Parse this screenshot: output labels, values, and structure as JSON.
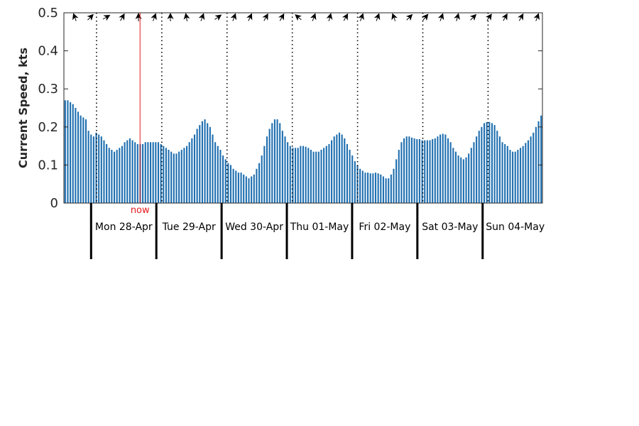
{
  "chart_data": {
    "type": "bar",
    "ylabel": "Current Speed, kts",
    "ylim": [
      0,
      0.5
    ],
    "yticks": [
      "0",
      "0.1",
      "0.2",
      "0.3",
      "0.4",
      "0.5"
    ],
    "bar_color": "#1f6fb0",
    "now_color": "#e41a1c",
    "grid": false,
    "now": {
      "label": "now",
      "time": "2025-04-28T18:00"
    },
    "x_start": "2025-04-27T14:00",
    "x_end": "2025-05-04T22:00",
    "days": [
      {
        "label": "Mon 28-Apr",
        "date": "2025-04-28"
      },
      {
        "label": "Tue 29-Apr",
        "date": "2025-04-29"
      },
      {
        "label": "Wed 30-Apr",
        "date": "2025-04-30"
      },
      {
        "label": "Thu 01-May",
        "date": "2025-05-01"
      },
      {
        "label": "Fri 02-May",
        "date": "2025-05-02"
      },
      {
        "label": "Sat 03-May",
        "date": "2025-05-03"
      },
      {
        "label": "Sun 04-May",
        "date": "2025-05-04"
      }
    ],
    "dotted_line_times": [
      "2025-04-28T02:00",
      "2025-04-29T02:00",
      "2025-04-30T02:00",
      "2025-05-01T02:00",
      "2025-05-02T02:00",
      "2025-05-03T02:00",
      "2025-05-04T02:00"
    ],
    "direction_arrows": {
      "icon": "arrow-icon",
      "headings_deg": [
        340,
        45,
        60,
        30,
        0,
        20,
        0,
        350,
        20,
        55,
        20,
        25,
        30,
        30,
        310,
        20,
        15,
        30,
        20,
        20,
        340,
        45,
        40,
        20,
        15,
        45,
        35,
        30,
        30,
        20
      ]
    },
    "x_step_hours": 1,
    "values": [
      0.27,
      0.27,
      0.265,
      0.26,
      0.25,
      0.24,
      0.23,
      0.225,
      0.22,
      0.19,
      0.18,
      0.175,
      0.185,
      0.18,
      0.175,
      0.165,
      0.155,
      0.145,
      0.14,
      0.135,
      0.14,
      0.145,
      0.15,
      0.16,
      0.165,
      0.17,
      0.165,
      0.16,
      0.155,
      0.155,
      0.155,
      0.16,
      0.16,
      0.16,
      0.16,
      0.16,
      0.16,
      0.155,
      0.15,
      0.145,
      0.14,
      0.135,
      0.13,
      0.13,
      0.135,
      0.14,
      0.145,
      0.15,
      0.16,
      0.17,
      0.18,
      0.195,
      0.205,
      0.215,
      0.22,
      0.21,
      0.2,
      0.18,
      0.16,
      0.15,
      0.14,
      0.125,
      0.115,
      0.105,
      0.1,
      0.09,
      0.085,
      0.08,
      0.08,
      0.075,
      0.07,
      0.065,
      0.07,
      0.075,
      0.09,
      0.105,
      0.125,
      0.15,
      0.175,
      0.195,
      0.21,
      0.22,
      0.22,
      0.21,
      0.19,
      0.175,
      0.16,
      0.15,
      0.145,
      0.145,
      0.145,
      0.15,
      0.15,
      0.148,
      0.145,
      0.14,
      0.135,
      0.135,
      0.135,
      0.14,
      0.145,
      0.15,
      0.155,
      0.165,
      0.175,
      0.18,
      0.185,
      0.18,
      0.17,
      0.155,
      0.14,
      0.125,
      0.11,
      0.1,
      0.09,
      0.085,
      0.08,
      0.08,
      0.078,
      0.078,
      0.08,
      0.078,
      0.075,
      0.07,
      0.065,
      0.065,
      0.075,
      0.09,
      0.115,
      0.14,
      0.16,
      0.17,
      0.175,
      0.175,
      0.172,
      0.17,
      0.168,
      0.168,
      0.165,
      0.165,
      0.165,
      0.165,
      0.168,
      0.17,
      0.175,
      0.18,
      0.182,
      0.18,
      0.17,
      0.16,
      0.145,
      0.135,
      0.125,
      0.12,
      0.115,
      0.12,
      0.13,
      0.145,
      0.16,
      0.175,
      0.19,
      0.2,
      0.21,
      0.213,
      0.213,
      0.21,
      0.205,
      0.19,
      0.175,
      0.16,
      0.155,
      0.15,
      0.14,
      0.135,
      0.135,
      0.14,
      0.145,
      0.15,
      0.158,
      0.165,
      0.175,
      0.185,
      0.2,
      0.215,
      0.23
    ]
  }
}
